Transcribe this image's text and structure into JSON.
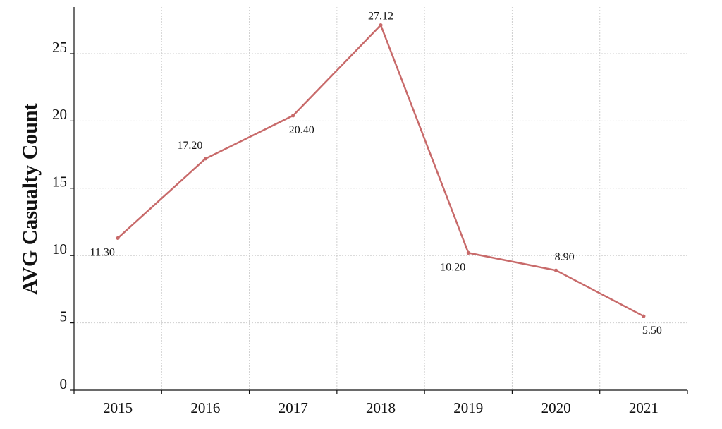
{
  "chart_data": {
    "type": "line",
    "title": "",
    "xlabel": "",
    "ylabel": "AVG Casualty Count",
    "categories": [
      "2015",
      "2016",
      "2017",
      "2018",
      "2019",
      "2020",
      "2021"
    ],
    "series": [
      {
        "values": [
          11.3,
          17.2,
          20.4,
          27.12,
          10.2,
          8.9,
          5.5
        ],
        "labels": [
          "11.30",
          "17.20",
          "20.40",
          "27.12",
          "10.20",
          "8.90",
          "5.50"
        ],
        "color": "#c86a6a"
      }
    ],
    "y_ticks": [
      "0",
      "5",
      "10",
      "15",
      "20",
      "25"
    ],
    "ylim": [
      0,
      28
    ],
    "grid": true,
    "legend": "none"
  }
}
